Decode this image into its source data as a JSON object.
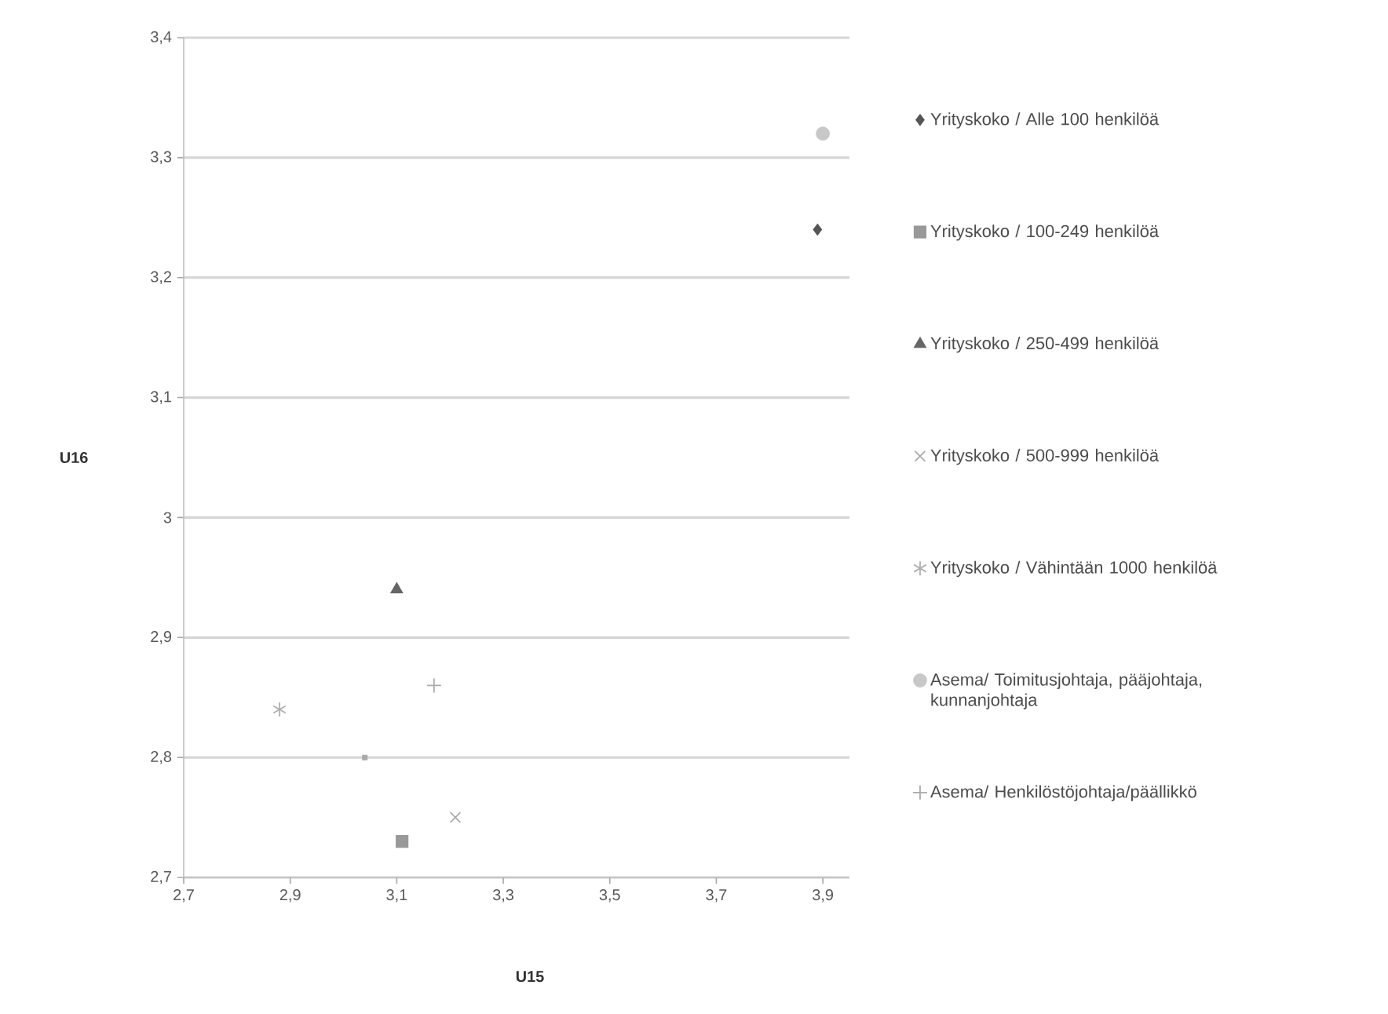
{
  "chart_data": {
    "type": "scatter",
    "xlabel": "U15",
    "ylabel": "U16",
    "xlim": [
      2.7,
      3.95
    ],
    "ylim": [
      2.7,
      3.4
    ],
    "xticks": [
      {
        "value": 2.7,
        "label": "2,7"
      },
      {
        "value": 2.9,
        "label": "2,9"
      },
      {
        "value": 3.1,
        "label": "3,1"
      },
      {
        "value": 3.3,
        "label": "3,3"
      },
      {
        "value": 3.5,
        "label": "3,5"
      },
      {
        "value": 3.7,
        "label": "3,7"
      },
      {
        "value": 3.9,
        "label": "3,9"
      }
    ],
    "yticks": [
      {
        "value": 2.7,
        "label": "2,7"
      },
      {
        "value": 2.8,
        "label": "2,8"
      },
      {
        "value": 2.9,
        "label": "2,9"
      },
      3,
      {
        "value": 3.1,
        "label": "3,1"
      },
      {
        "value": 3.2,
        "label": "3,2"
      },
      {
        "value": 3.3,
        "label": "3,3"
      },
      {
        "value": 3.4,
        "label": "3,4"
      }
    ],
    "grid": "y",
    "legend": "right",
    "series": [
      {
        "name": "Yrityskoko / Alle 100 henkilöä",
        "color": "#555555",
        "marker": "diamond",
        "x": [
          3.89
        ],
        "values": [
          3.24
        ]
      },
      {
        "name": "Yrityskoko / 100-249 henkilöä",
        "color": "#999999",
        "marker": "square",
        "x": [
          3.11
        ],
        "values": [
          2.73
        ]
      },
      {
        "name": "Yrityskoko / 250-499 henkilöä",
        "color": "#666666",
        "marker": "triangle",
        "x": [
          3.1
        ],
        "values": [
          2.94
        ]
      },
      {
        "name": "Yrityskoko / 500-999 henkilöä",
        "color": "#aaaaaa",
        "marker": "cross",
        "x": [
          3.21
        ],
        "values": [
          2.75
        ]
      },
      {
        "name": "Yrityskoko / Vähintään 1000 henkilöä",
        "color": "#b0b0b0",
        "marker": "cross",
        "x": [
          2.88
        ],
        "values": [
          2.84
        ]
      },
      {
        "name": "Asema/ Toimitusjohtaja, pääjohtaja, kunnanjohtaja",
        "color": "#c8c8c8",
        "marker": "circle",
        "x": [
          3.9
        ],
        "values": [
          3.32
        ]
      },
      {
        "name": "Asema/ Henkilöstöjohtaja/päällikkö",
        "color": "#aaaaaa",
        "marker": "plus",
        "x": [
          3.17
        ],
        "values": [
          2.86
        ]
      },
      {
        "color": "#aaaaaa",
        "marker": "square",
        "x": [
          3.04
        ],
        "values": [
          2.8
        ]
      }
    ]
  }
}
